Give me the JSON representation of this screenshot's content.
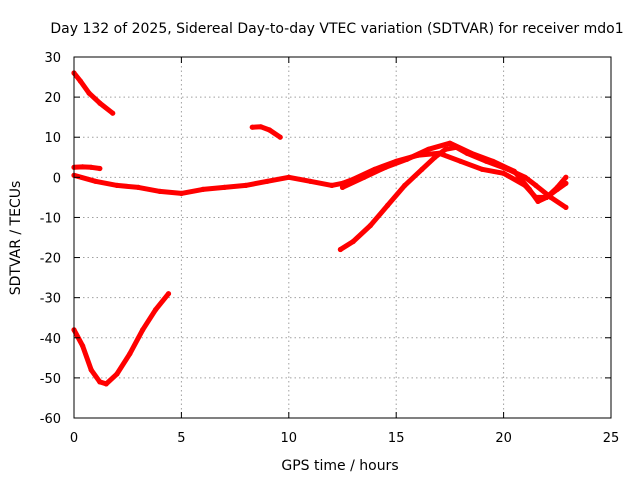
{
  "chart_data": {
    "type": "scatter",
    "title": "Day 132 of 2025, Sidereal Day-to-day VTEC variation (SDTVAR) for receiver mdo1",
    "xlabel": "GPS time / hours",
    "ylabel": "SDTVAR / TECUs",
    "xlim": [
      0,
      25
    ],
    "ylim": [
      -60,
      30
    ],
    "x_ticks": [
      0,
      5,
      10,
      15,
      20,
      25
    ],
    "y_ticks": [
      -60,
      -50,
      -40,
      -30,
      -20,
      -10,
      0,
      10,
      20,
      30
    ],
    "x_tick_labels": [
      "0",
      "5",
      "10",
      "15",
      "20",
      "25"
    ],
    "y_tick_labels": [
      "-60",
      "-50",
      "-40",
      "-30",
      "-20",
      "-10",
      "0",
      "10",
      "20",
      "30"
    ],
    "grid": true,
    "series_color": "#ff0000",
    "series": [
      {
        "name": "arc-top-left",
        "x": [
          0,
          0.3,
          0.7,
          1.2,
          1.8
        ],
        "y": [
          26,
          24,
          21,
          18.5,
          16
        ]
      },
      {
        "name": "arc-short-upper",
        "x": [
          8.3,
          8.7,
          9.1,
          9.6
        ],
        "y": [
          12.5,
          12.6,
          11.8,
          10
        ]
      },
      {
        "name": "arc-deep-dip",
        "x": [
          0,
          0.4,
          0.8,
          1.2,
          1.5,
          2.0,
          2.6,
          3.2,
          3.8,
          4.4
        ],
        "y": [
          -38,
          -42,
          -48,
          -51,
          -51.5,
          -49,
          -44,
          -38,
          -33,
          -29
        ]
      },
      {
        "name": "arc-near-zero-start",
        "x": [
          0,
          0.4,
          0.8,
          1.2
        ],
        "y": [
          2.5,
          2.6,
          2.5,
          2.2
        ]
      },
      {
        "name": "arc-main-band",
        "x": [
          0,
          1,
          2,
          3,
          4,
          5,
          6,
          7,
          8,
          9,
          10,
          11,
          12,
          12.5,
          13,
          14,
          15,
          16,
          17,
          18,
          19,
          20,
          21,
          21.5,
          22,
          22.5,
          22.9
        ],
        "y": [
          0.5,
          -1,
          -2,
          -2.5,
          -3.5,
          -4,
          -3,
          -2.5,
          -2,
          -1,
          0,
          -1,
          -2,
          -1.5,
          -0.5,
          2,
          4,
          5.5,
          6,
          4,
          2,
          1,
          -2,
          -5,
          -5,
          -2.5,
          0
        ]
      },
      {
        "name": "arc-secondary-band",
        "x": [
          12.5,
          13.5,
          14.5,
          15.5,
          16.5,
          17.5,
          18.5,
          19.5,
          20.5,
          21.2,
          21.6,
          22,
          22.5,
          22.9
        ],
        "y": [
          -2.5,
          0,
          2.5,
          4.5,
          7,
          8.5,
          6,
          4,
          1.5,
          -3,
          -6,
          -5,
          -3,
          -1.5
        ]
      },
      {
        "name": "arc-rising-band",
        "x": [
          12.4,
          13,
          13.8,
          14.6,
          15.4,
          16.2,
          16.8,
          17.3,
          17.8,
          18.3,
          19.2,
          20.2,
          21,
          21.5,
          22.2,
          22.9
        ],
        "y": [
          -18,
          -16,
          -12,
          -7,
          -2,
          2,
          5,
          7,
          7.5,
          6,
          4,
          2,
          0,
          -2,
          -5,
          -7.5
        ]
      }
    ]
  }
}
